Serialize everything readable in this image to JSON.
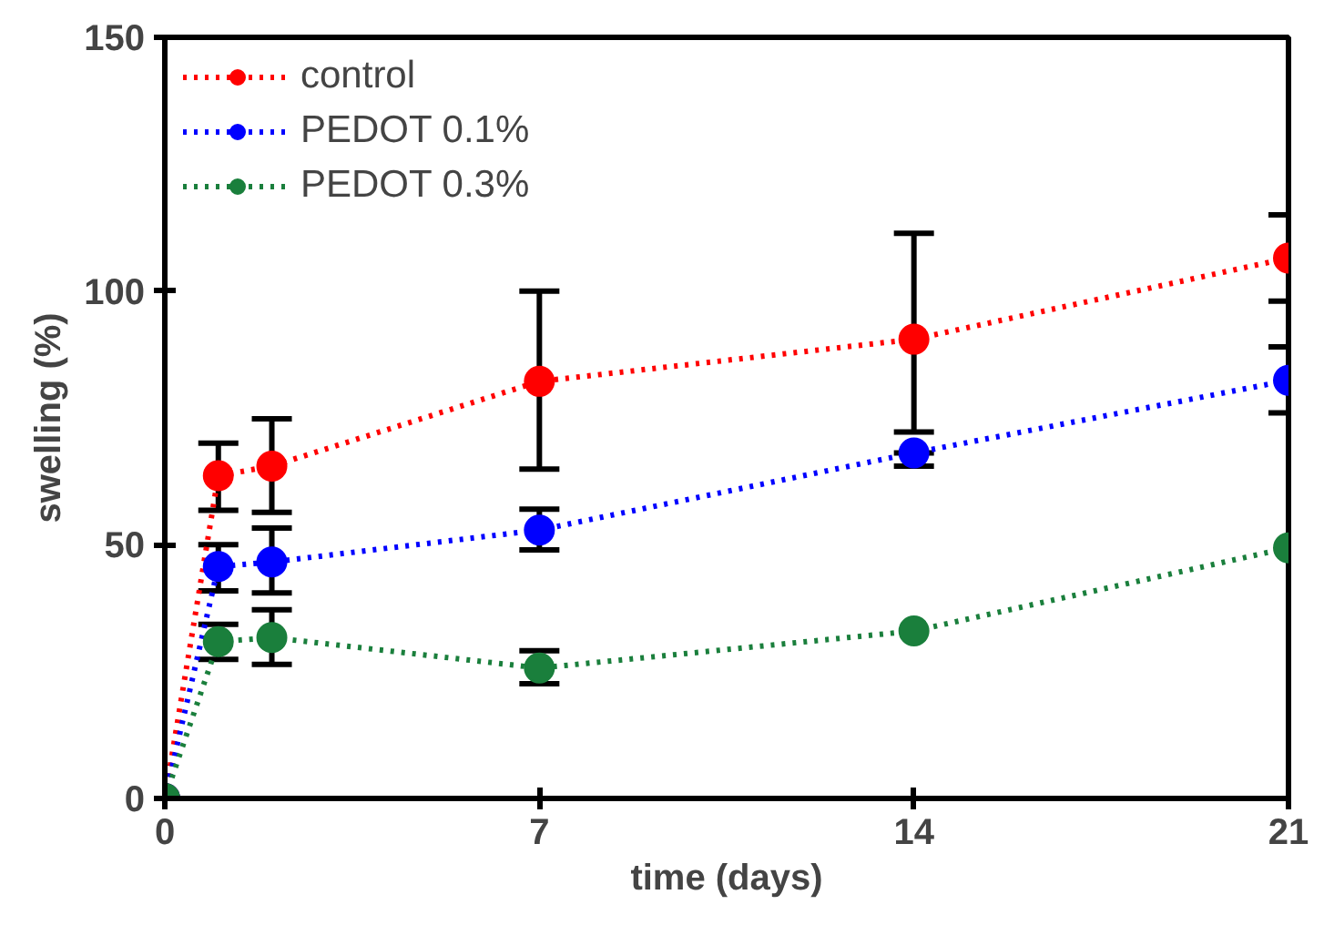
{
  "chart_data": {
    "type": "line",
    "xlabel": "time (days)",
    "ylabel": "swelling (%)",
    "x": [
      0,
      1,
      2,
      7,
      14,
      21
    ],
    "xlim": [
      0,
      21
    ],
    "xticks": [
      0,
      7,
      14,
      21
    ],
    "ylim": [
      0,
      150
    ],
    "yticks": [
      0,
      50,
      100,
      150
    ],
    "grid": false,
    "legend": "top left",
    "marker": "circle",
    "line_style": "dotted",
    "series": [
      {
        "name": "control",
        "color": "#ff0000",
        "values": [
          0,
          63.6,
          65.5,
          82.2,
          90.5,
          106.5
        ],
        "errors": [
          null,
          [
            56.8,
            70
          ],
          [
            56.4,
            74.8
          ],
          [
            64.9,
            100
          ],
          [
            72.2,
            111.4
          ],
          [
            98,
            115
          ]
        ]
      },
      {
        "name": "PEDOT 0.1%",
        "color": "#0000ff",
        "values": [
          0,
          45.7,
          46.6,
          52.9,
          68.1,
          82.4
        ],
        "errors": [
          null,
          [
            40.9,
            50
          ],
          [
            40.5,
            53.3
          ],
          [
            49,
            57
          ],
          [
            65.5,
            68.1
          ],
          [
            76,
            89
          ]
        ]
      },
      {
        "name": "PEDOT 0.3%",
        "color": "#1a7f3c",
        "values": [
          0,
          30.9,
          31.7,
          25.7,
          33,
          49.4
        ],
        "errors": [
          null,
          [
            27.4,
            34.3
          ],
          [
            26.4,
            37.2
          ],
          [
            22.6,
            29.1
          ],
          null,
          null
        ]
      }
    ]
  }
}
